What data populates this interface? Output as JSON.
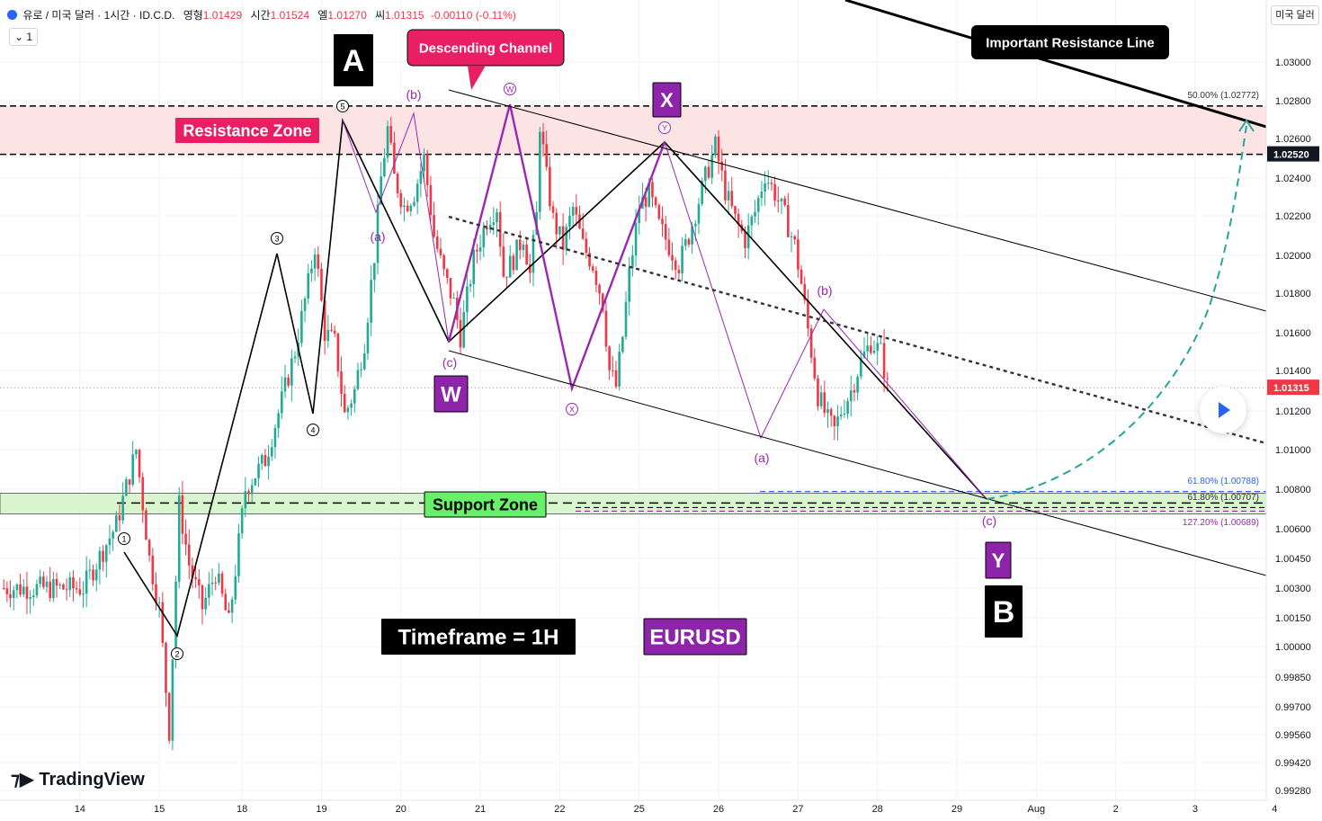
{
  "header": {
    "symbol": "유로 / 미국 달러 · 1시간 · ID.C.D.",
    "open_label": "영형",
    "open": "1.01429",
    "high_label": "시간",
    "high": "1.01524",
    "low_label": "엘",
    "low": "1.01270",
    "close_label": "씨",
    "close": "1.01315",
    "change": "-0.00110 (-0.11%)",
    "interval_badge": "1",
    "currency_button": "미국 달러"
  },
  "branding": {
    "logo_text": "TradingView"
  },
  "colors": {
    "up": "#22ab94",
    "down": "#f23645",
    "purple": "#9c27b0",
    "resistance_fill": "#fde4e4",
    "support_fill": "#d8f5d0",
    "projection": "#26a69a"
  },
  "chart_data": {
    "type": "candlestick",
    "symbol": "EURUSD",
    "timeframe": "1H",
    "price_axis": {
      "ticks": [
        1.03,
        1.028,
        1.026,
        1.024,
        1.022,
        1.02,
        1.018,
        1.016,
        1.014,
        1.012,
        1.01,
        1.008,
        1.006,
        1.0045,
        1.003,
        1.0015,
        1.0,
        0.9985,
        0.997,
        0.9956,
        0.9942,
        0.9928
      ],
      "tick_labels": [
        "1.03000",
        "1.02800",
        "1.02600",
        "1.02400",
        "1.02200",
        "1.02000",
        "1.01800",
        "1.01600",
        "1.01400",
        "1.01200",
        "1.01000",
        "1.00800",
        "1.00600",
        "1.00450",
        "1.00300",
        "1.00150",
        "1.00000",
        "0.99850",
        "0.99700",
        "0.99560",
        "0.99420",
        "0.99280"
      ],
      "highlight_labels": [
        {
          "value": 1.0252,
          "label": "1.02520",
          "style": "dark"
        },
        {
          "value": 1.01315,
          "label": "1.01315",
          "style": "red"
        }
      ]
    },
    "time_axis": {
      "labels": [
        "14",
        "15",
        "18",
        "19",
        "20",
        "21",
        "22",
        "25",
        "26",
        "27",
        "28",
        "29",
        "Aug",
        "2",
        "3",
        "4"
      ],
      "label_index": [
        -1,
        23,
        48,
        72,
        96,
        120,
        144,
        168,
        192,
        216,
        240,
        264,
        288,
        312,
        336,
        360
      ]
    },
    "price_path": [
      [
        0,
        1.003
      ],
      [
        10,
        1.0062
      ],
      [
        16,
        1.01
      ],
      [
        20,
        1.0045
      ],
      [
        23,
        1.002
      ],
      [
        26,
        0.9958
      ],
      [
        29,
        1.0072
      ],
      [
        32,
        1.0042
      ],
      [
        36,
        1.002
      ],
      [
        40,
        1.0038
      ],
      [
        44,
        1.0012
      ],
      [
        49,
        1.008
      ],
      [
        55,
        1.0095
      ],
      [
        60,
        1.0125
      ],
      [
        64,
        1.015
      ],
      [
        68,
        1.0185
      ],
      [
        70,
        1.0205
      ],
      [
        73,
        1.016
      ],
      [
        76,
        1.0155
      ],
      [
        79,
        1.0118
      ],
      [
        82,
        1.013
      ],
      [
        85,
        1.0155
      ],
      [
        88,
        1.02
      ],
      [
        90,
        1.024
      ],
      [
        92,
        1.0265
      ],
      [
        94,
        1.024
      ],
      [
        97,
        1.0225
      ],
      [
        100,
        1.0232
      ],
      [
        103,
        1.025
      ],
      [
        106,
        1.021
      ],
      [
        109,
        1.019
      ],
      [
        112,
        1.0175
      ],
      [
        114,
        1.0158
      ],
      [
        118,
        1.0198
      ],
      [
        122,
        1.0218
      ],
      [
        125,
        1.0225
      ],
      [
        127,
        1.019
      ],
      [
        130,
        1.0198
      ],
      [
        133,
        1.021
      ],
      [
        135,
        1.019
      ],
      [
        137,
        1.022
      ],
      [
        138,
        1.0268
      ],
      [
        140,
        1.024
      ],
      [
        142,
        1.0218
      ],
      [
        145,
        1.0205
      ],
      [
        148,
        1.0224
      ],
      [
        151,
        1.0205
      ],
      [
        154,
        1.0195
      ],
      [
        157,
        1.0175
      ],
      [
        159,
        1.014
      ],
      [
        161,
        1.0132
      ],
      [
        163,
        1.0158
      ],
      [
        165,
        1.019
      ],
      [
        168,
        1.0225
      ],
      [
        171,
        1.0232
      ],
      [
        174,
        1.0215
      ],
      [
        177,
        1.0205
      ],
      [
        180,
        1.0195
      ],
      [
        183,
        1.021
      ],
      [
        185,
        1.0222
      ],
      [
        188,
        1.024
      ],
      [
        191,
        1.0256
      ],
      [
        194,
        1.0233
      ],
      [
        197,
        1.0218
      ],
      [
        200,
        1.0208
      ],
      [
        203,
        1.0222
      ],
      [
        206,
        1.0242
      ],
      [
        209,
        1.0232
      ],
      [
        212,
        1.022
      ],
      [
        215,
        1.0205
      ],
      [
        217,
        1.0185
      ],
      [
        220,
        1.015
      ],
      [
        222,
        1.0128
      ],
      [
        225,
        1.0115
      ],
      [
        227,
        1.011
      ],
      [
        229,
        1.012
      ],
      [
        232,
        1.013
      ],
      [
        235,
        1.0145
      ],
      [
        238,
        1.0155
      ],
      [
        241,
        1.015
      ],
      [
        243,
        1.0132
      ]
    ],
    "zones": [
      {
        "name": "Resistance Zone",
        "from": 1.0252,
        "to": 1.02772
      },
      {
        "name": "Support Zone",
        "from": 1.00689,
        "to": 1.00788
      }
    ],
    "fib_levels": [
      {
        "label": "50.00% (1.02772)",
        "value": 1.02772
      },
      {
        "label": "61.80% (1.00788)",
        "value": 1.00788
      },
      {
        "label": "61.80% (1.00707)",
        "value": 1.00707
      },
      {
        "label": "127.20% (1.00689)",
        "value": 1.00689
      }
    ],
    "wave_labels": {
      "impulse": [
        "①",
        "②",
        "③",
        "④",
        "⑤"
      ],
      "abc_first": [
        "(a)",
        "(b)",
        "(c)"
      ],
      "wxy": [
        "Ⓦ",
        "Ⓧ",
        "Ⓨ"
      ],
      "abc_second": [
        "(a)",
        "(b)",
        "(c)"
      ]
    },
    "annotations": {
      "big_a": "A",
      "big_b": "B",
      "w_box": "W",
      "x_box": "X",
      "y_box": "Y",
      "channel_callout": "Descending Channel",
      "resistance_line_callout": "Important Resistance Line",
      "timeframe": "Timeframe = 1H",
      "pair": "EURUSD",
      "resistance_zone": "Resistance Zone",
      "support_zone": "Support Zone"
    }
  }
}
